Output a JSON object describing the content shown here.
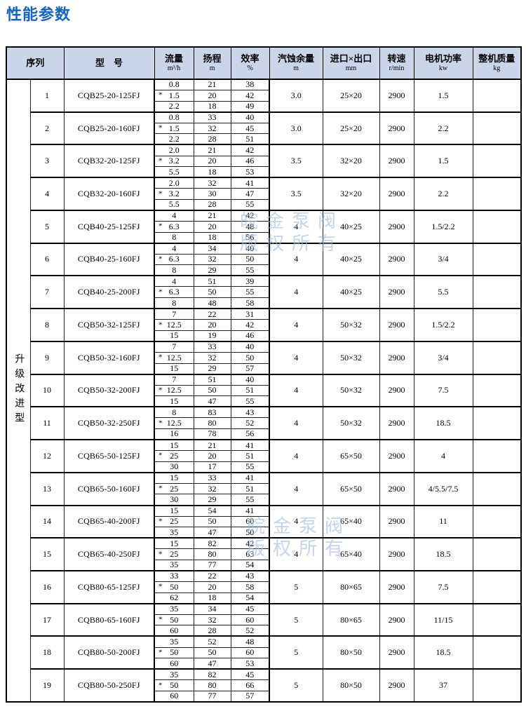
{
  "page": {
    "title": "性能参数"
  },
  "colors": {
    "title": "#1565c0",
    "header_bg": "#ccd4e8",
    "watermark": "#9db8e2"
  },
  "watermark": {
    "line1": "皖金泵阀",
    "line2": "版权所有"
  },
  "table": {
    "group_label": "升级改进型",
    "rated_marker": "*",
    "headers": {
      "serial": {
        "label": "序列",
        "unit": ""
      },
      "model": {
        "label": "型    号",
        "unit": ""
      },
      "flow": {
        "label": "流量",
        "unit": "m³/h"
      },
      "head": {
        "label": "扬程",
        "unit": "m"
      },
      "efficiency": {
        "label": "效率",
        "unit": "%"
      },
      "npsh": {
        "label": "汽蚀余量",
        "unit": "m"
      },
      "ports": {
        "label": "进口×出口",
        "unit": "mm"
      },
      "speed": {
        "label": "转速",
        "unit": "r/min"
      },
      "power": {
        "label": "电机功率",
        "unit": "kw"
      },
      "weight": {
        "label": "整机质量",
        "unit": "kg"
      }
    },
    "rows": [
      {
        "serial": "1",
        "model": "CQB25-20-125FJ",
        "flow": [
          "0.8",
          "1.5",
          "2.2"
        ],
        "head": [
          "21",
          "20",
          "18"
        ],
        "eff": [
          "38",
          "42",
          "49"
        ],
        "npsh": "3.0",
        "ports": "25×20",
        "speed": "2900",
        "power": "1.5",
        "weight": ""
      },
      {
        "serial": "2",
        "model": "CQB25-20-160FJ",
        "flow": [
          "0.8",
          "1.5",
          "2.2"
        ],
        "head": [
          "33",
          "32",
          "28"
        ],
        "eff": [
          "40",
          "45",
          "51"
        ],
        "npsh": "3.0",
        "ports": "25×20",
        "speed": "2900",
        "power": "2.2",
        "weight": ""
      },
      {
        "serial": "3",
        "model": "CQB32-20-125FJ",
        "flow": [
          "2.0",
          "3.2",
          "5.5"
        ],
        "head": [
          "21",
          "20",
          "18"
        ],
        "eff": [
          "42",
          "46",
          "53"
        ],
        "npsh": "3.5",
        "ports": "32×20",
        "speed": "2900",
        "power": "1.5",
        "weight": ""
      },
      {
        "serial": "4",
        "model": "CQB32-20-160FJ",
        "flow": [
          "2.0",
          "3.2",
          "5.5"
        ],
        "head": [
          "32",
          "30",
          "28"
        ],
        "eff": [
          "41",
          "47",
          "55"
        ],
        "npsh": "3.5",
        "ports": "32×20",
        "speed": "2900",
        "power": "2.2",
        "weight": ""
      },
      {
        "serial": "5",
        "model": "CQB40-25-125FJ",
        "flow": [
          "4",
          "6.3",
          "8"
        ],
        "head": [
          "21",
          "20",
          "18"
        ],
        "eff": [
          "42",
          "48",
          "56"
        ],
        "npsh": "4",
        "ports": "40×25",
        "speed": "2900",
        "power": "1.5/2.2",
        "weight": ""
      },
      {
        "serial": "6",
        "model": "CQB40-25-160FJ",
        "flow": [
          "4",
          "6.3",
          "8"
        ],
        "head": [
          "34",
          "32",
          "29"
        ],
        "eff": [
          "40",
          "50",
          "55"
        ],
        "npsh": "4",
        "ports": "40×25",
        "speed": "2900",
        "power": "3/4",
        "weight": ""
      },
      {
        "serial": "7",
        "model": "CQB40-25-200FJ",
        "flow": [
          "4",
          "6.3",
          "8"
        ],
        "head": [
          "51",
          "50",
          "48"
        ],
        "eff": [
          "39",
          "55",
          "58"
        ],
        "npsh": "4",
        "ports": "40×25",
        "speed": "2900",
        "power": "5.5",
        "weight": ""
      },
      {
        "serial": "8",
        "model": "CQB50-32-125FJ",
        "flow": [
          "7",
          "12.5",
          "15"
        ],
        "head": [
          "22",
          "20",
          "19"
        ],
        "eff": [
          "31",
          "42",
          "46"
        ],
        "npsh": "4",
        "ports": "50×32",
        "speed": "2900",
        "power": "1.5/2.2",
        "weight": ""
      },
      {
        "serial": "9",
        "model": "CQB50-32-160FJ",
        "flow": [
          "7",
          "12.5",
          "15"
        ],
        "head": [
          "33",
          "32",
          "29"
        ],
        "eff": [
          "40",
          "50",
          "57"
        ],
        "npsh": "4",
        "ports": "50×32",
        "speed": "2900",
        "power": "3/4",
        "weight": ""
      },
      {
        "serial": "10",
        "model": "CQB50-32-200FJ",
        "flow": [
          "7",
          "12.5",
          "15"
        ],
        "head": [
          "51",
          "50",
          "47"
        ],
        "eff": [
          "40",
          "51",
          "55"
        ],
        "npsh": "4",
        "ports": "50×32",
        "speed": "2900",
        "power": "7.5",
        "weight": ""
      },
      {
        "serial": "11",
        "model": "CQB50-32-250FJ",
        "flow": [
          "8",
          "12.5",
          "16"
        ],
        "head": [
          "83",
          "80",
          "78"
        ],
        "eff": [
          "43",
          "52",
          "56"
        ],
        "npsh": "4",
        "ports": "50×32",
        "speed": "2900",
        "power": "18.5",
        "weight": ""
      },
      {
        "serial": "12",
        "model": "CQB65-50-125FJ",
        "flow": [
          "15",
          "25",
          "30"
        ],
        "head": [
          "21",
          "20",
          "17"
        ],
        "eff": [
          "41",
          "51",
          "55"
        ],
        "npsh": "4",
        "ports": "65×50",
        "speed": "2900",
        "power": "4",
        "weight": ""
      },
      {
        "serial": "13",
        "model": "CQB65-50-160FJ",
        "flow": [
          "15",
          "25",
          "30"
        ],
        "head": [
          "33",
          "32",
          "29"
        ],
        "eff": [
          "41",
          "51",
          "55"
        ],
        "npsh": "4",
        "ports": "65×50",
        "speed": "2900",
        "power": "4/5.5/7.5",
        "weight": ""
      },
      {
        "serial": "14",
        "model": "CQB65-40-200FJ",
        "flow": [
          "15",
          "25",
          "35"
        ],
        "head": [
          "54",
          "50",
          "47"
        ],
        "eff": [
          "41",
          "60",
          "50"
        ],
        "npsh": "4",
        "ports": "65×40",
        "speed": "2900",
        "power": "11",
        "weight": ""
      },
      {
        "serial": "15",
        "model": "CQB65-40-250FJ",
        "flow": [
          "15",
          "25",
          "35"
        ],
        "head": [
          "82",
          "80",
          "77"
        ],
        "eff": [
          "42",
          "63",
          "54"
        ],
        "npsh": "4",
        "ports": "65×40",
        "speed": "2900",
        "power": "18.5",
        "weight": ""
      },
      {
        "serial": "16",
        "model": "CQB80-65-125FJ",
        "flow": [
          "33",
          "50",
          "62"
        ],
        "head": [
          "22",
          "20",
          "18"
        ],
        "eff": [
          "43",
          "58",
          "54"
        ],
        "npsh": "5",
        "ports": "80×65",
        "speed": "2900",
        "power": "7.5",
        "weight": ""
      },
      {
        "serial": "17",
        "model": "CQB80-65-160FJ",
        "flow": [
          "35",
          "50",
          "60"
        ],
        "head": [
          "34",
          "32",
          "28"
        ],
        "eff": [
          "45",
          "60",
          "52"
        ],
        "npsh": "5",
        "ports": "80×65",
        "speed": "2900",
        "power": "11/15",
        "weight": ""
      },
      {
        "serial": "18",
        "model": "CQB80-50-200FJ",
        "flow": [
          "35",
          "50",
          "60"
        ],
        "head": [
          "52",
          "50",
          "47"
        ],
        "eff": [
          "48",
          "60",
          "53"
        ],
        "npsh": "5",
        "ports": "80×50",
        "speed": "2900",
        "power": "18.5",
        "weight": ""
      },
      {
        "serial": "19",
        "model": "CQB80-50-250FJ",
        "flow": [
          "35",
          "50",
          "60"
        ],
        "head": [
          "82",
          "80",
          "77"
        ],
        "eff": [
          "45",
          "66",
          "57"
        ],
        "npsh": "5",
        "ports": "80×50",
        "speed": "2900",
        "power": "37",
        "weight": ""
      }
    ]
  }
}
